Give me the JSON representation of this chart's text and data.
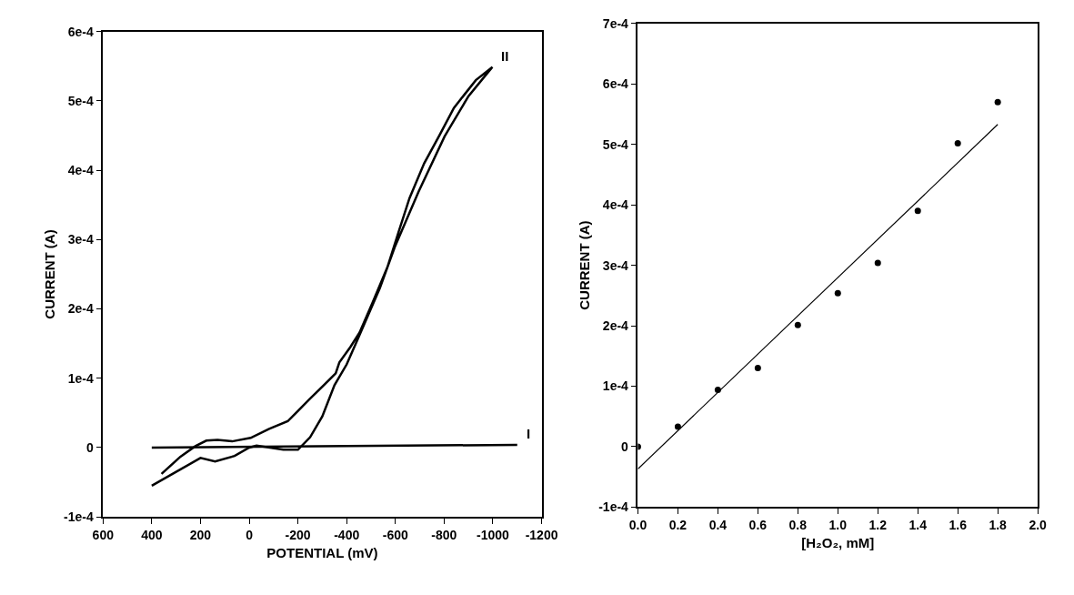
{
  "chart_data": [
    {
      "type": "line",
      "xlabel": "POTENTIAL (mV)",
      "ylabel": "CURRENT (A)",
      "xlim": [
        600,
        -1200
      ],
      "xticks": [
        600,
        400,
        200,
        0,
        -200,
        -400,
        -600,
        -800,
        -1000,
        -1200
      ],
      "ylim": [
        -0.0001,
        0.0006
      ],
      "yticks": [
        {
          "value": -0.0001,
          "label": "-1e-4"
        },
        0,
        {
          "value": 0.0001,
          "label": "1e-4"
        },
        {
          "value": 0.0002,
          "label": "2e-4"
        },
        {
          "value": 0.0003,
          "label": "3e-4"
        },
        {
          "value": 0.0004,
          "label": "4e-4"
        },
        {
          "value": 0.0005,
          "label": "5e-4"
        },
        {
          "value": 0.0006,
          "label": "6e-4"
        }
      ],
      "grid": false,
      "legend": false,
      "marker": "none",
      "line_style": "solid",
      "series": [
        {
          "name": "I",
          "color": "#000000",
          "x": [
            400,
            -1100
          ],
          "values": [
            0,
            4e-06
          ]
        },
        {
          "name": "II",
          "color": "#000000",
          "x": [
            400,
            300,
            200,
            140,
            60,
            0,
            -30,
            -140,
            -200,
            -250,
            -300,
            -350,
            -400,
            -450,
            -536,
            -597,
            -695,
            -802,
            -900,
            -998,
            -930,
            -840,
            -780,
            -718,
            -658,
            -612,
            -567,
            -506,
            -453,
            -415,
            -370,
            -355,
            -309,
            -248,
            -203,
            -158,
            -82,
            -6,
            70,
            130,
            176,
            221,
            282,
            360
          ],
          "values": [
            -5.5e-05,
            -3.5e-05,
            -1.5e-05,
            -2e-05,
            -1.2e-05,
            0,
            3e-06,
            -3e-06,
            -3e-06,
            1.5e-05,
            4.5e-05,
            9e-05,
            0.00012,
            0.00016,
            0.00023,
            0.000289,
            0.000369,
            0.000449,
            0.000507,
            0.000549,
            0.00053,
            0.00049,
            0.00045,
            0.00041,
            0.00036,
            0.00031,
            0.00026,
            0.000209,
            0.000166,
            0.000145,
            0.000123,
            0.000107,
            9.1e-05,
            7e-05,
            5.4e-05,
            3.8e-05,
            2.7e-05,
            1.4e-05,
            9e-06,
            1.1e-05,
            1e-05,
            2e-06,
            -1.3e-05,
            -3.8e-05
          ]
        }
      ]
    },
    {
      "type": "scatter",
      "xlabel": "[H₂O₂, mM]",
      "ylabel": "CURRENT (A)",
      "xlim": [
        0,
        2
      ],
      "xticks": [
        {
          "value": 0,
          "label": "0.0"
        },
        0.2,
        0.4,
        0.6,
        0.8,
        {
          "value": 1,
          "label": "1.0"
        },
        1.2,
        1.4,
        1.6,
        1.8,
        {
          "value": 2,
          "label": "2.0"
        }
      ],
      "ylim": [
        -0.0001,
        0.0007
      ],
      "yticks": [
        {
          "value": -0.0001,
          "label": "-1e-4"
        },
        0,
        {
          "value": 0.0001,
          "label": "1e-4"
        },
        {
          "value": 0.0002,
          "label": "2e-4"
        },
        {
          "value": 0.0003,
          "label": "3e-4"
        },
        {
          "value": 0.0004,
          "label": "4e-4"
        },
        {
          "value": 0.0005,
          "label": "5e-4"
        },
        {
          "value": 0.0006,
          "label": "6e-4"
        },
        {
          "value": 0.0007,
          "label": "7e-4"
        }
      ],
      "grid": false,
      "legend": false,
      "series": [
        {
          "marker": "circle",
          "color": "#000000",
          "x": [
            0,
            0.2,
            0.4,
            0.6,
            0.8,
            1.0,
            1.2,
            1.4,
            1.6,
            1.8
          ],
          "values": [
            0,
            3.3e-05,
            9.4e-05,
            0.00013,
            0.000201,
            0.000254,
            0.000304,
            0.00039,
            0.000502,
            0.00057
          ]
        },
        {
          "type": "line",
          "color": "#000000",
          "x": [
            0,
            1.8
          ],
          "values": [
            -3.7e-05,
            0.000533
          ]
        }
      ]
    }
  ]
}
